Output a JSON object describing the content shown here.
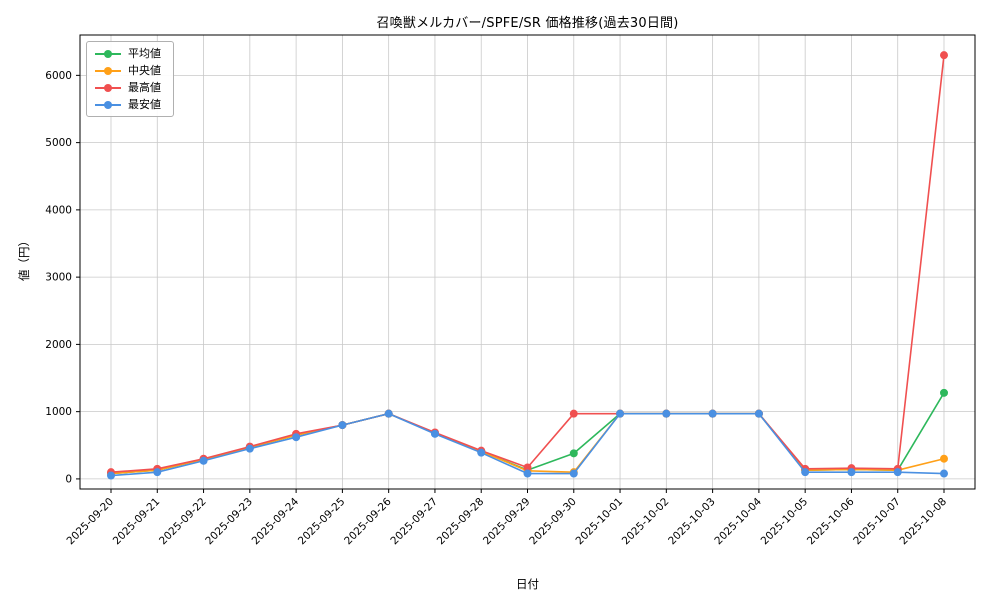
{
  "chart_data": {
    "type": "line",
    "title": "召喚獣メルカバー/SPFE/SR 価格推移(過去30日間)",
    "xlabel": "日付",
    "ylabel": "値（円）",
    "grid": true,
    "legend_position": "upper left",
    "ylim": [
      -150,
      6600
    ],
    "yticks": [
      0,
      1000,
      2000,
      3000,
      4000,
      5000,
      6000
    ],
    "categories": [
      "2025-09-20",
      "2025-09-21",
      "2025-09-22",
      "2025-09-23",
      "2025-09-24",
      "2025-09-25",
      "2025-09-26",
      "2025-09-27",
      "2025-09-28",
      "2025-09-29",
      "2025-09-30",
      "2025-10-01",
      "2025-10-02",
      "2025-10-03",
      "2025-10-04",
      "2025-10-05",
      "2025-10-06",
      "2025-10-07",
      "2025-10-08"
    ],
    "series": [
      {
        "name": "平均値",
        "color": "#2eb85c",
        "values": [
          80,
          130,
          290,
          470,
          650,
          800,
          970,
          680,
          410,
          130,
          380,
          970,
          970,
          970,
          970,
          130,
          140,
          130,
          1280
        ]
      },
      {
        "name": "中央値",
        "color": "#ffa018",
        "values": [
          80,
          130,
          290,
          470,
          650,
          800,
          970,
          680,
          410,
          120,
          100,
          970,
          970,
          970,
          970,
          130,
          140,
          130,
          300
        ]
      },
      {
        "name": "最高値",
        "color": "#f05050",
        "values": [
          100,
          150,
          300,
          480,
          670,
          800,
          970,
          690,
          420,
          170,
          970,
          970,
          970,
          970,
          970,
          150,
          160,
          150,
          6300
        ]
      },
      {
        "name": "最安値",
        "color": "#4a90e2",
        "values": [
          50,
          100,
          270,
          450,
          620,
          800,
          970,
          670,
          390,
          80,
          80,
          970,
          970,
          970,
          970,
          100,
          100,
          100,
          80
        ]
      }
    ]
  }
}
